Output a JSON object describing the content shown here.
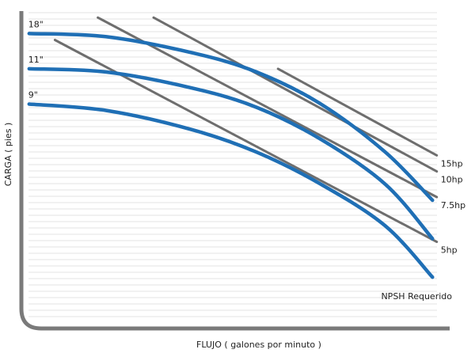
{
  "chart_data": {
    "type": "line",
    "title": "",
    "xlabel": "FLUJO ( galones por minuto )",
    "ylabel": "CARGA ( pies )",
    "xlim": [
      0,
      100
    ],
    "ylim": [
      0,
      100
    ],
    "grid": "horizontal",
    "colors": {
      "impeller_curve": "#1f6fb5",
      "power_line": "#6e6e6e",
      "axis": "#7a7a7a",
      "grid": "#e3e3e3"
    },
    "series": [
      {
        "name": "18\"",
        "kind": "impeller",
        "x": [
          2,
          20,
          40,
          55,
          70,
          85,
          96
        ],
        "y": [
          92,
          91,
          86,
          80,
          70,
          55,
          40
        ]
      },
      {
        "name": "11\"",
        "kind": "impeller",
        "x": [
          2,
          20,
          40,
          55,
          70,
          85,
          96
        ],
        "y": [
          81,
          80,
          75,
          69,
          59,
          45,
          28
        ]
      },
      {
        "name": "9\"",
        "kind": "impeller",
        "x": [
          2,
          20,
          40,
          55,
          70,
          85,
          96
        ],
        "y": [
          70,
          68,
          62,
          55,
          45,
          32,
          16
        ]
      },
      {
        "name": "15hp",
        "kind": "power",
        "x": [
          60,
          97
        ],
        "y": [
          81,
          54
        ]
      },
      {
        "name": "10hp",
        "kind": "power",
        "x": [
          31,
          97
        ],
        "y": [
          97,
          49
        ]
      },
      {
        "name": "7.5hp",
        "kind": "power",
        "x": [
          18,
          97
        ],
        "y": [
          97,
          41
        ]
      },
      {
        "name": "5hp",
        "kind": "power",
        "x": [
          8,
          97
        ],
        "y": [
          90,
          27
        ]
      }
    ],
    "annotations": [
      "NPSH Requerido"
    ]
  }
}
